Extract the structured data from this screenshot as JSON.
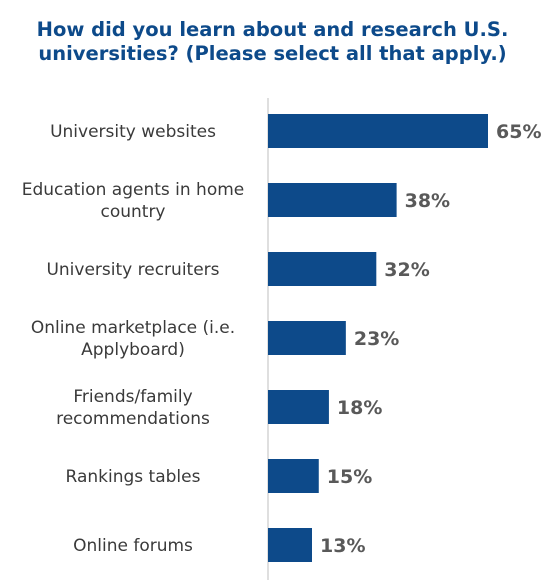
{
  "chart_data": {
    "type": "bar",
    "orientation": "horizontal",
    "title_lines": [
      "How did you learn about and research U.S.",
      "universities? (Please select all that apply.)"
    ],
    "categories": [
      [
        "University websites"
      ],
      [
        "Education agents in home",
        "country"
      ],
      [
        "University recruiters"
      ],
      [
        "Online marketplace (i.e.",
        "Applyboard)"
      ],
      [
        "Friends/family",
        "recommendations"
      ],
      [
        "Rankings tables"
      ],
      [
        "Online forums"
      ]
    ],
    "values": [
      65,
      38,
      32,
      23,
      18,
      15,
      13
    ],
    "value_labels": [
      "65%",
      "38%",
      "32%",
      "23%",
      "18%",
      "15%",
      "13%"
    ],
    "xlim": [
      0,
      65
    ],
    "grid": false,
    "legend": "none",
    "colors": {
      "bar": "#0d4a8a",
      "title": "#0d4a8a",
      "value_label": "#595959",
      "category_label": "#3a3a3a",
      "axis": "#bfbfbf"
    }
  }
}
